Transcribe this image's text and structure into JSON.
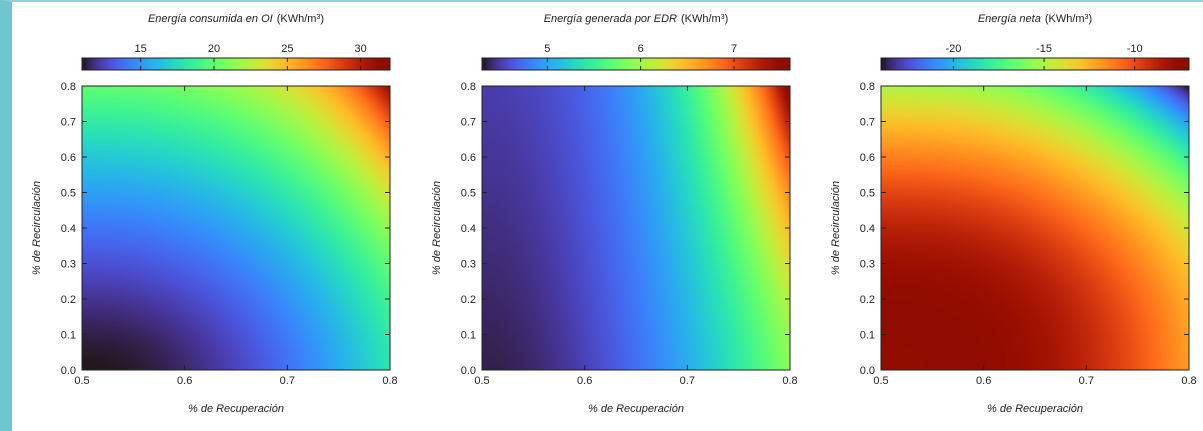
{
  "chart_data": [
    {
      "type": "heatmap",
      "colorbar_title": "Energía consumida en OI",
      "colorbar_unit": "(KWh/m",
      "colorbar_unit_sup": "3",
      "colorbar_unit_close": ")",
      "colorbar_range": [
        11,
        32
      ],
      "colorbar_ticks": [
        15,
        20,
        25,
        30
      ],
      "colorbar_tick_labels": [
        "15",
        "20",
        "25",
        "30"
      ],
      "xlabel": "% de Recuperación",
      "ylabel": "% de Recirculación",
      "xlim": [
        0.5,
        0.8
      ],
      "ylim": [
        0.0,
        0.8
      ],
      "xticks": [
        0.5,
        0.6,
        0.7,
        0.8
      ],
      "xtick_labels": [
        "0.5",
        "0.6",
        "0.7",
        "0.8"
      ],
      "yticks": [
        0.0,
        0.1,
        0.2,
        0.3,
        0.4,
        0.5,
        0.6,
        0.7,
        0.8
      ],
      "ytick_labels": [
        "0.0",
        "0.1",
        "0.2",
        "0.3",
        "0.4",
        "0.5",
        "0.6",
        "0.7",
        "0.8"
      ],
      "corner_values": {
        "x0.5_y0.0": 11,
        "x0.8_y0.0": 18,
        "x0.5_y0.8": 20,
        "x0.8_y0.8": 31
      }
    },
    {
      "type": "heatmap",
      "colorbar_title": "Energía generada por EDR",
      "colorbar_unit": "(KWh/m",
      "colorbar_unit_sup": "3",
      "colorbar_unit_close": ")",
      "colorbar_range": [
        4.3,
        7.6
      ],
      "colorbar_ticks": [
        5,
        6,
        7
      ],
      "colorbar_tick_labels": [
        "5",
        "6",
        "7"
      ],
      "xlabel": "% de Recuperación",
      "ylabel": "% de Recirculación",
      "xlim": [
        0.5,
        0.8
      ],
      "ylim": [
        0.0,
        0.8
      ],
      "xticks": [
        0.5,
        0.6,
        0.7,
        0.8
      ],
      "xtick_labels": [
        "0.5",
        "0.6",
        "0.7",
        "0.8"
      ],
      "yticks": [
        0.0,
        0.1,
        0.2,
        0.3,
        0.4,
        0.5,
        0.6,
        0.7,
        0.8
      ],
      "ytick_labels": [
        "0.0",
        "0.1",
        "0.2",
        "0.3",
        "0.4",
        "0.5",
        "0.6",
        "0.7",
        "0.8"
      ],
      "corner_values": {
        "x0.5_y0.0": 4.35,
        "x0.8_y0.0": 5.9,
        "x0.5_y0.8": 4.5,
        "x0.8_y0.8": 7.6
      }
    },
    {
      "type": "heatmap",
      "colorbar_title": "Energía neta",
      "colorbar_unit": "(KWh/m",
      "colorbar_unit_sup": "3",
      "colorbar_unit_close": ")",
      "colorbar_range": [
        -24,
        -7
      ],
      "colorbar_ticks": [
        -20,
        -15,
        -10
      ],
      "colorbar_tick_labels": [
        "-20",
        "-15",
        "-10"
      ],
      "xlabel": "% de Recuperación",
      "ylabel": "% de Recirculación",
      "xlim": [
        0.5,
        0.8
      ],
      "ylim": [
        0.0,
        0.8
      ],
      "xticks": [
        0.5,
        0.6,
        0.7,
        0.8
      ],
      "xtick_labels": [
        "0.5",
        "0.6",
        "0.7",
        "0.8"
      ],
      "yticks": [
        0.0,
        0.1,
        0.2,
        0.3,
        0.4,
        0.5,
        0.6,
        0.7,
        0.8
      ],
      "ytick_labels": [
        "0.0",
        "0.1",
        "0.2",
        "0.3",
        "0.4",
        "0.5",
        "0.6",
        "0.7",
        "0.8"
      ],
      "corner_values": {
        "x0.5_y0.0": -7,
        "x0.8_y0.0": -12,
        "x0.5_y0.8": -15,
        "x0.8_y0.8": -24
      }
    }
  ],
  "colormap": "turbo"
}
